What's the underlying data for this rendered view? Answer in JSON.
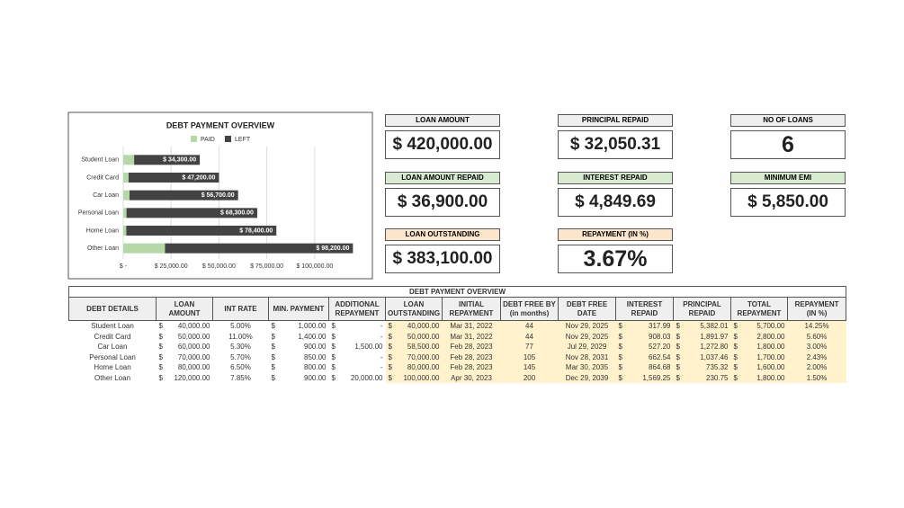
{
  "chart_data": {
    "type": "stacked_barh",
    "title": "DEBT PAYMENT OVERVIEW",
    "legend": "top",
    "categories": [
      "Student Loan",
      "Credit Card",
      "Car Loan",
      "Personal Loan",
      "Home Loan",
      "Other Loan"
    ],
    "series": [
      {
        "name": "PAID",
        "color": "#b6d7a8",
        "values": [
          5700,
          2800,
          3300,
          1700,
          1600,
          21800
        ]
      },
      {
        "name": "LEFT",
        "color": "#434343",
        "values": [
          34300,
          47200,
          56700,
          68300,
          78400,
          98200
        ],
        "value_labels": [
          "$ 34,300.00",
          "$ 47,200.00",
          "$ 56,700.00",
          "$ 68,300.00",
          "$ 78,400.00",
          "$ 98,200.00"
        ]
      }
    ],
    "xlim": [
      0,
      125000
    ],
    "xticks": [
      {
        "value": 0,
        "label": "$ -"
      },
      {
        "value": 25000,
        "label": "$ 25,000.00"
      },
      {
        "value": 50000,
        "label": "$ 50,000.00"
      },
      {
        "value": 75000,
        "label": "$ 75,000.00"
      },
      {
        "value": 100000,
        "label": "$ 100,000.00"
      }
    ],
    "grid": true
  },
  "cards": [
    {
      "title": "LOAN AMOUNT",
      "value": "$ 420,000.00",
      "color": "#efefef"
    },
    {
      "title": "LOAN AMOUNT REPAID",
      "value": "$ 36,900.00",
      "color": "#d9ead3"
    },
    {
      "title": "LOAN OUTSTANDING",
      "value": "$ 383,100.00",
      "color": "#fce5cd"
    },
    {
      "title": "PRINCIPAL REPAID",
      "value": "$ 32,050.31",
      "color": "#efefef"
    },
    {
      "title": "INTEREST REPAID",
      "value": "$ 4,849.69",
      "color": "#d9ead3"
    },
    {
      "title": "REPAYMENT (IN %)",
      "value": "3.67%",
      "color": "#fce5cd"
    },
    {
      "title": "NO OF LOANS",
      "value": "6",
      "color": "#efefef"
    },
    {
      "title": "MINIMUM EMI",
      "value": "$ 5,850.00",
      "color": "#d9ead3"
    }
  ],
  "table": {
    "title": "DEBT PAYMENT OVERVIEW",
    "highlight_color": "#fff2cc",
    "headers": [
      "DEBT DETAILS",
      "LOAN AMOUNT",
      "INT RATE",
      "MIN. PAYMENT",
      "ADDITIONAL REPAYMENT",
      "LOAN OUTSTANDING",
      "INITIAL REPAYMENT",
      "DEBT FREE BY (in months)",
      "DEBT FREE DATE",
      "INTEREST REPAID",
      "PRINCIPAL REPAID",
      "TOTAL REPAYMENT",
      "REPAYMENT (IN %)"
    ],
    "rows": [
      [
        "Student Loan",
        [
          "$",
          "40,000.00"
        ],
        "5.00%",
        [
          "$",
          "1,000.00"
        ],
        [
          "$",
          "-"
        ],
        [
          "$",
          "40,000.00"
        ],
        "Mar 31, 2022",
        "44",
        "Nov 29, 2025",
        [
          "$",
          "317.99"
        ],
        [
          "$",
          "5,382.01"
        ],
        [
          "$",
          "5,700.00"
        ],
        "14.25%"
      ],
      [
        "Credit Card",
        [
          "$",
          "50,000.00"
        ],
        "11.00%",
        [
          "$",
          "1,400.00"
        ],
        [
          "$",
          "-"
        ],
        [
          "$",
          "50,000.00"
        ],
        "Mar 31, 2022",
        "44",
        "Nov 29, 2025",
        [
          "$",
          "908.03"
        ],
        [
          "$",
          "1,891.97"
        ],
        [
          "$",
          "2,800.00"
        ],
        "5.60%"
      ],
      [
        "Car Loan",
        [
          "$",
          "60,000.00"
        ],
        "5.30%",
        [
          "$",
          "900.00"
        ],
        [
          "$",
          "1,500.00"
        ],
        [
          "$",
          "58,500.00"
        ],
        "Feb 28, 2023",
        "77",
        "Jul 29, 2029",
        [
          "$",
          "527.20"
        ],
        [
          "$",
          "1,272.80"
        ],
        [
          "$",
          "1,800.00"
        ],
        "3.00%"
      ],
      [
        "Personal Loan",
        [
          "$",
          "70,000.00"
        ],
        "5.70%",
        [
          "$",
          "850.00"
        ],
        [
          "$",
          "-"
        ],
        [
          "$",
          "70,000.00"
        ],
        "Feb 28, 2023",
        "105",
        "Nov 28, 2031",
        [
          "$",
          "662.54"
        ],
        [
          "$",
          "1,037.46"
        ],
        [
          "$",
          "1,700.00"
        ],
        "2.43%"
      ],
      [
        "Home Loan",
        [
          "$",
          "80,000.00"
        ],
        "6.50%",
        [
          "$",
          "800.00"
        ],
        [
          "$",
          "-"
        ],
        [
          "$",
          "80,000.00"
        ],
        "Feb 28, 2023",
        "145",
        "Mar 30, 2035",
        [
          "$",
          "864.68"
        ],
        [
          "$",
          "735.32"
        ],
        [
          "$",
          "1,600.00"
        ],
        "2.00%"
      ],
      [
        "Other Loan",
        [
          "$",
          "120,000.00"
        ],
        "7.85%",
        [
          "$",
          "900.00"
        ],
        [
          "$",
          "20,000.00"
        ],
        [
          "$",
          "100,000.00"
        ],
        "Apr 30, 2023",
        "200",
        "Dec 29, 2039",
        [
          "$",
          "1,569.25"
        ],
        [
          "$",
          "230.75"
        ],
        [
          "$",
          "1,800.00"
        ],
        "1.50%"
      ]
    ]
  }
}
